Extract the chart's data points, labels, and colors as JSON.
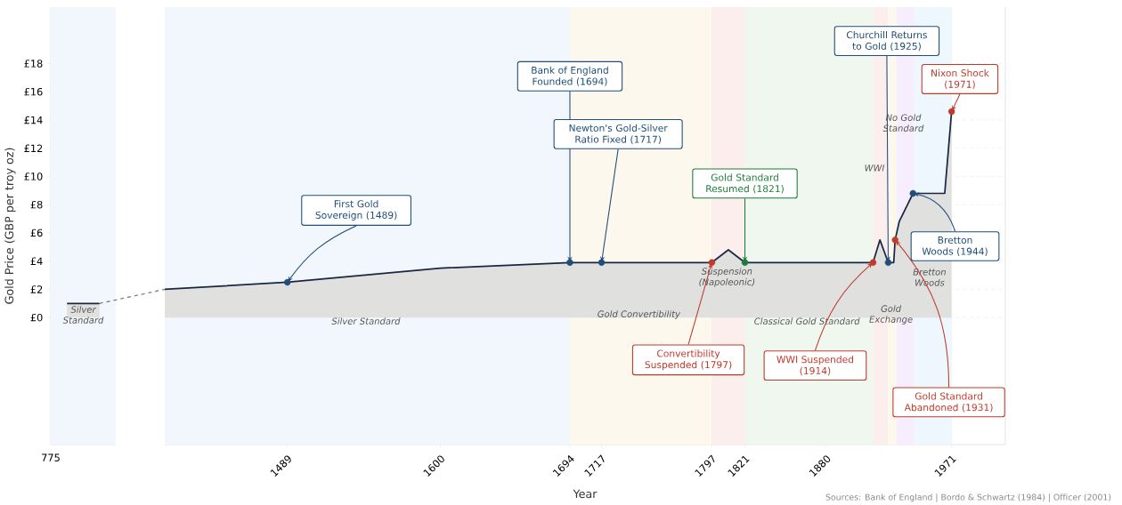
{
  "chart_data": [
    {
      "type": "area",
      "ylabel": "Gold Price (GBP per troy oz)",
      "categories": [
        null,
        null
      ],
      "series": [
        {
          "color": "#1a2744",
          "values": [
            1.0,
            1.0
          ]
        }
      ],
      "annotations": [
        "775"
      ],
      "ylim": [
        -9,
        22
      ],
      "yticks": [
        {
          "value": 0,
          "label": "£0"
        },
        {
          "value": 2,
          "label": "£2"
        },
        {
          "value": 4,
          "label": "£4"
        },
        {
          "value": 6,
          "label": "£6"
        },
        {
          "value": 8,
          "label": "£8"
        },
        {
          "value": 10,
          "label": "£10"
        },
        {
          "value": 12,
          "label": "£12"
        },
        {
          "value": 14,
          "label": "£14"
        },
        {
          "value": 16,
          "label": "£16"
        },
        {
          "value": 18,
          "label": "£18"
        }
      ],
      "bands": [
        {
          "axis": "y",
          "from": -9,
          "to": 22,
          "label": "Silver Standard",
          "color": "#f2f6fd"
        }
      ],
      "grid": true
    },
    {
      "type": "area",
      "xlabel": "Year",
      "series": [
        {
          "color": "#1a2744",
          "x": [
            1400,
            1489,
            1600,
            1694,
            1717,
            1797,
            1809,
            1821,
            1914,
            1919,
            1925,
            1929,
            1930,
            1933,
            1943,
            1966,
            1971
          ],
          "values": [
            2.0,
            2.5,
            3.5,
            3.9,
            3.9,
            3.9,
            4.8,
            3.9,
            3.9,
            5.5,
            3.9,
            3.9,
            5.5,
            6.8,
            8.8,
            8.8,
            14.6
          ]
        },
        {
          "type": "scatter",
          "marker": "circle",
          "x": [
            1489,
            1694,
            1717,
            1797,
            1821,
            1914,
            1925,
            1930,
            1943,
            1971
          ],
          "values": [
            2.5,
            3.9,
            3.9,
            3.9,
            3.9,
            3.9,
            3.9,
            5.5,
            8.8,
            14.6
          ],
          "colors": [
            "#1f4e79",
            "#1f4e79",
            "#1f4e79",
            "#c0392b",
            "#1e7b3c",
            "#c0392b",
            "#1f4e79",
            "#c0392b",
            "#1f4e79",
            "#c0392b"
          ]
        }
      ],
      "xlim": [
        1400,
        2010
      ],
      "xticks": [
        1489,
        1600,
        1694,
        1717,
        1797,
        1821,
        1880,
        1971
      ],
      "ylim": [
        -9,
        22
      ],
      "yticks": [
        0,
        2,
        4,
        6,
        8,
        10,
        12,
        14,
        16,
        18
      ],
      "tick_labels": "x",
      "grid": true,
      "bands": [
        {
          "axis": "x",
          "from": 1400,
          "to": 1694,
          "label": "Silver Standard",
          "color": "#f2f6fd"
        },
        {
          "axis": "x",
          "from": 1694,
          "to": 1797,
          "label": "Gold Convertibility",
          "color": "#fdf8ee"
        },
        {
          "axis": "x",
          "from": 1797,
          "to": 1821,
          "label": "Suspension (Napoleonic)",
          "color": "#fdeeee"
        },
        {
          "axis": "x",
          "from": 1821,
          "to": 1914,
          "label": "Classical Gold Standard",
          "color": "#eff7ee"
        },
        {
          "axis": "x",
          "from": 1914,
          "to": 1925,
          "label": "WWI",
          "color": "#fdeeee"
        },
        {
          "axis": "x",
          "from": 1925,
          "to": 1931,
          "label": "Gold Exchange",
          "color": "#fdf8ee"
        },
        {
          "axis": "x",
          "from": 1931,
          "to": 1944,
          "label": "No Gold Standard",
          "color": "#f6eefc"
        },
        {
          "axis": "x",
          "from": 1944,
          "to": 1971,
          "label": "Bretton Woods",
          "color": "#eef7fd"
        }
      ],
      "annotations": [
        {
          "text": "First Gold Sovereign (1489)",
          "x": 1489,
          "y": 2.5
        },
        {
          "text": "Bank of England Founded (1694)",
          "x": 1694,
          "y": 3.9
        },
        {
          "text": "Newton's Gold-Silver Ratio Fixed (1717)",
          "x": 1717,
          "y": 3.9
        },
        {
          "text": "Convertibility Suspended (1797)",
          "x": 1797,
          "y": 3.9
        },
        {
          "text": "Gold Standard Resumed (1821)",
          "x": 1821,
          "y": 3.9
        },
        {
          "text": "WWI Suspended (1914)",
          "x": 1914,
          "y": 3.9
        },
        {
          "text": "Churchill Returns to Gold (1925)",
          "x": 1925,
          "y": 3.9
        },
        {
          "text": "Gold Standard Abandoned (1931)",
          "x": 1930,
          "y": 5.5
        },
        {
          "text": "Bretton Woods (1944)",
          "x": 1943,
          "y": 8.8
        },
        {
          "text": "Nixon Shock (1971)",
          "x": 1971,
          "y": 14.6
        },
        "Sources: Bank of England | Bordo & Schwartz (1984) | Officer (2001)"
      ]
    }
  ]
}
